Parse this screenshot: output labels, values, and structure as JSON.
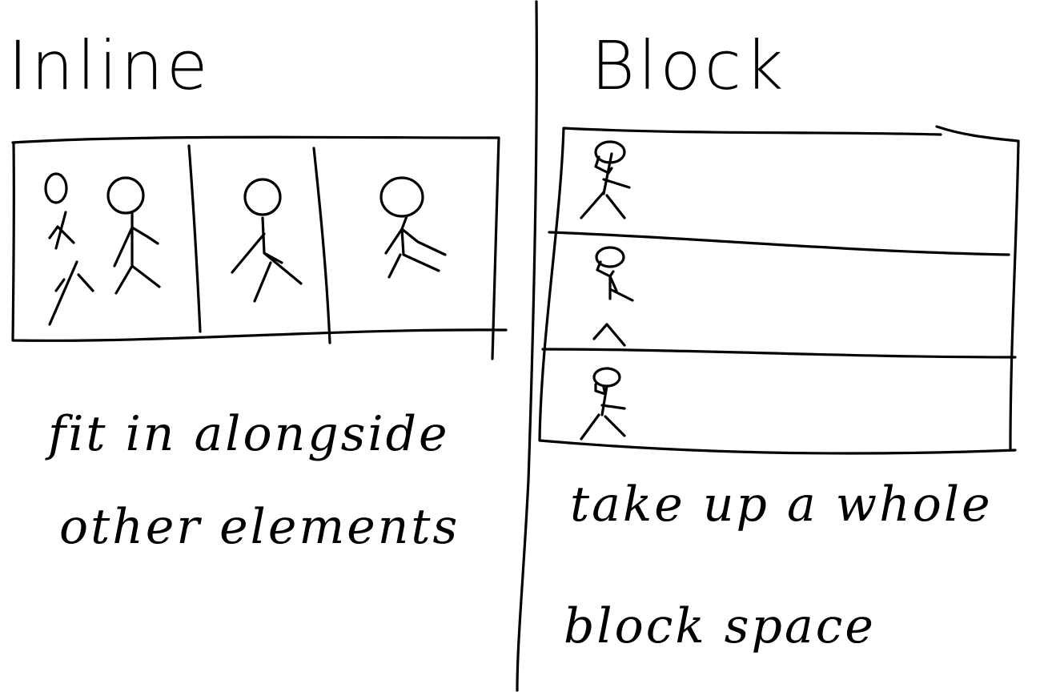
{
  "inline": {
    "heading": "Inline",
    "caption_line1": "fit in alongside",
    "caption_line2": "other elements"
  },
  "block": {
    "heading": "Block",
    "caption_line1": "take up a whole",
    "caption_line2": "block space"
  }
}
